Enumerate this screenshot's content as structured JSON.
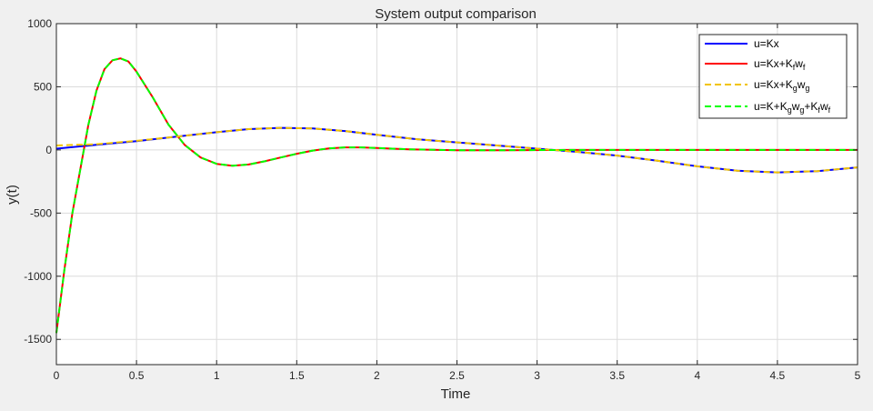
{
  "figure": {
    "background": "#f0f0f0"
  },
  "chart_data": {
    "type": "line",
    "title": "System output comparison",
    "xlabel": "Time",
    "ylabel": "y(t)",
    "xlim": [
      0,
      5
    ],
    "ylim": [
      -1700,
      1000
    ],
    "xticks": [
      0,
      0.5,
      1,
      1.5,
      2,
      2.5,
      3,
      3.5,
      4,
      4.5,
      5
    ],
    "xtick_labels": [
      "0",
      "0.5",
      "1",
      "1.5",
      "2",
      "2.5",
      "3",
      "3.5",
      "4",
      "4.5",
      "5"
    ],
    "yticks": [
      -1500,
      -1000,
      -500,
      0,
      500,
      1000
    ],
    "ytick_labels": [
      "-1500",
      "-1000",
      "-500",
      "0",
      "500",
      "1000"
    ],
    "grid": true,
    "legend_position": "top-right",
    "series": [
      {
        "name": "u=Kx",
        "legend_text": {
          "base": "u=Kx",
          "subscripts": []
        },
        "color": "#0000ff",
        "dash": "solid",
        "x": [
          0,
          0.25,
          0.5,
          0.75,
          1.0,
          1.2,
          1.4,
          1.6,
          1.8,
          2.0,
          2.25,
          2.5,
          2.75,
          3.0,
          3.25,
          3.5,
          3.75,
          4.0,
          4.25,
          4.5,
          4.75,
          5.0
        ],
        "y": [
          10,
          40,
          70,
          105,
          140,
          165,
          175,
          170,
          150,
          120,
          85,
          60,
          35,
          10,
          -15,
          -45,
          -85,
          -130,
          -165,
          -178,
          -168,
          -138
        ]
      },
      {
        "name": "u=Kx+K_f w_f",
        "legend_text": {
          "base": "u=Kx+K",
          "subscripts": [
            "f",
            "w",
            "f"
          ]
        },
        "color": "#ff0000",
        "dash": "solid",
        "x": [
          0,
          0.05,
          0.1,
          0.15,
          0.2,
          0.25,
          0.3,
          0.35,
          0.4,
          0.45,
          0.5,
          0.6,
          0.7,
          0.8,
          0.9,
          1.0,
          1.1,
          1.2,
          1.3,
          1.4,
          1.5,
          1.6,
          1.7,
          1.8,
          1.9,
          2.0,
          2.2,
          2.5,
          2.8,
          3.2,
          3.6,
          4.0,
          4.5,
          5.0
        ],
        "y": [
          -1450,
          -950,
          -500,
          -150,
          200,
          470,
          640,
          710,
          725,
          700,
          620,
          420,
          200,
          40,
          -60,
          -110,
          -125,
          -115,
          -90,
          -60,
          -30,
          -5,
          12,
          20,
          20,
          15,
          5,
          -2,
          -2,
          0,
          0,
          0,
          0,
          0
        ]
      },
      {
        "name": "u=Kx+K_g w_g",
        "legend_text": {
          "base": "u=Kx+K",
          "subscripts": [
            "g",
            "w",
            "g"
          ]
        },
        "color": "#f2c400",
        "dash": "dashed",
        "x": [
          0,
          0.25,
          0.5,
          0.75,
          1.0,
          1.2,
          1.4,
          1.6,
          1.8,
          2.0,
          2.25,
          2.5,
          2.75,
          3.0,
          3.25,
          3.5,
          3.75,
          4.0,
          4.25,
          4.5,
          4.75,
          5.0
        ],
        "y": [
          35,
          45,
          72,
          105,
          140,
          165,
          175,
          170,
          150,
          120,
          85,
          60,
          35,
          10,
          -15,
          -45,
          -85,
          -130,
          -165,
          -178,
          -168,
          -138
        ]
      },
      {
        "name": "u=K+K_g w_g+K_f w_f",
        "legend_text": {
          "base": "u=K+K",
          "subscripts": [
            "g",
            "w",
            "g",
            "+K",
            "f",
            "w",
            "f"
          ]
        },
        "color": "#00ff00",
        "dash": "dashed",
        "x": [
          0,
          0.05,
          0.1,
          0.15,
          0.2,
          0.25,
          0.3,
          0.35,
          0.4,
          0.45,
          0.5,
          0.6,
          0.7,
          0.8,
          0.9,
          1.0,
          1.1,
          1.2,
          1.3,
          1.4,
          1.5,
          1.6,
          1.7,
          1.8,
          1.9,
          2.0,
          2.2,
          2.5,
          2.8,
          3.2,
          3.6,
          4.0,
          4.5,
          5.0
        ],
        "y": [
          -1450,
          -950,
          -500,
          -150,
          200,
          470,
          640,
          710,
          725,
          700,
          620,
          420,
          200,
          40,
          -60,
          -110,
          -125,
          -115,
          -90,
          -60,
          -30,
          -5,
          12,
          20,
          20,
          15,
          5,
          -2,
          -2,
          0,
          0,
          0,
          0,
          0
        ]
      }
    ]
  }
}
